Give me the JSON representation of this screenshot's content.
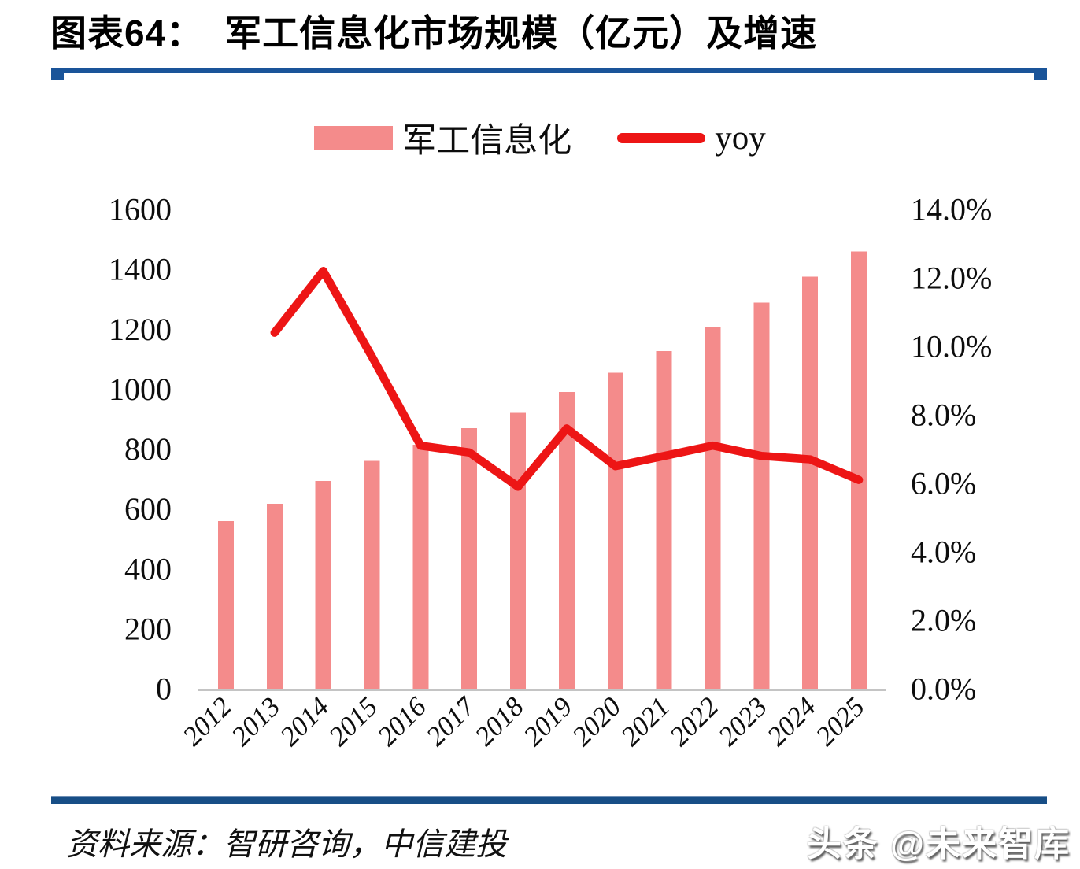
{
  "page": {
    "title_prefix": "图表64：",
    "title": "军工信息化市场规模（亿元）及增速"
  },
  "legend": [
    {
      "label": "军工信息化",
      "type": "bar",
      "color": "#f48b8b"
    },
    {
      "label": "yoy",
      "type": "line",
      "color": "#ed1515"
    }
  ],
  "chart_data": {
    "type": "bar",
    "title": "军工信息化市场规模（亿元）及增速",
    "categories": [
      "2012",
      "2013",
      "2014",
      "2015",
      "2016",
      "2017",
      "2018",
      "2019",
      "2020",
      "2021",
      "2022",
      "2023",
      "2024",
      "2025"
    ],
    "series": [
      {
        "name": "军工信息化",
        "type": "bar",
        "axis": "left",
        "color": "#f48b8b",
        "values": [
          560,
          618,
          693,
          760,
          814,
          870,
          921,
          991,
          1055,
          1127,
          1207,
          1289,
          1375,
          1459
        ]
      },
      {
        "name": "yoy",
        "type": "line",
        "axis": "right",
        "color": "#ed1515",
        "unit": "%",
        "values": [
          null,
          10.4,
          12.2,
          9.7,
          7.1,
          6.9,
          5.9,
          7.6,
          6.5,
          6.8,
          7.1,
          6.8,
          6.7,
          6.1
        ]
      }
    ],
    "left_axis": {
      "min": 0,
      "max": 1600,
      "step": 200
    },
    "right_axis": {
      "min": 0,
      "max": 14,
      "step": 2,
      "decimals": 1,
      "suffix": "%"
    },
    "ylabel": "",
    "xlabel": "",
    "grid": false,
    "legend_position": "top",
    "x_tick_rotation": -45
  },
  "footer": {
    "source": "资料来源：智研咨询，中信建投"
  },
  "watermark": {
    "text": "头条 @未来智库"
  }
}
